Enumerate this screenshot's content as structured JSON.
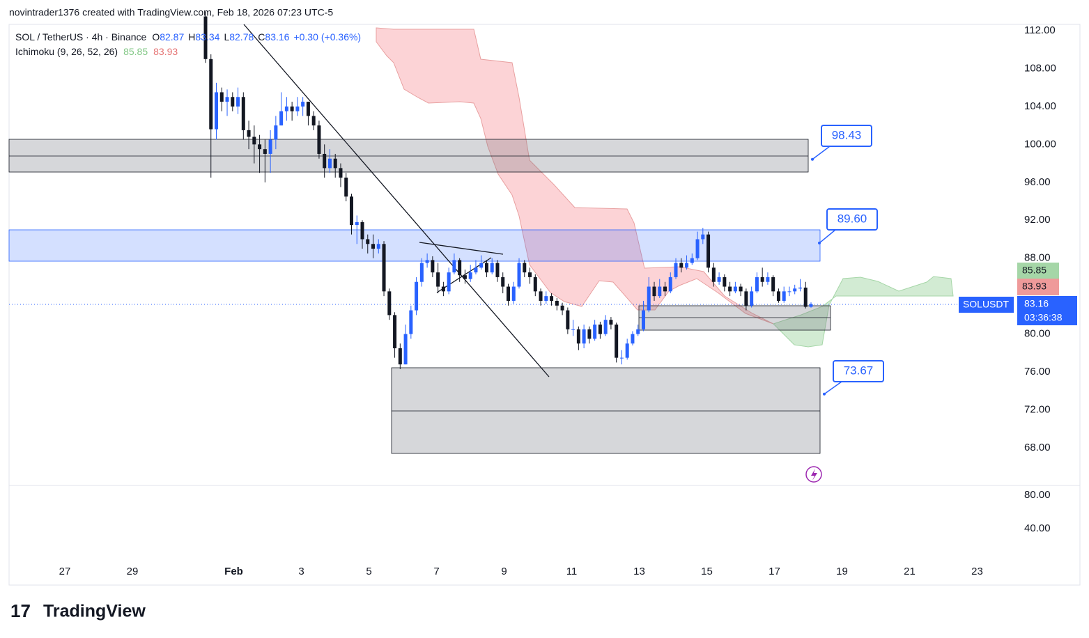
{
  "header": "novintrader1376 created with TradingView.com, Feb 18, 2026 07:23 UTC-5",
  "brand": "TradingView",
  "chart_data": {
    "type": "candlestick",
    "symbol": "SOL / TetherUS · 4h · Binance",
    "ohlc_labels": [
      "O",
      "H",
      "L",
      "C"
    ],
    "change": "+0.30",
    "change_pct": "(+0.36%)",
    "indicator": "Ichimoku (9, 26, 52, 26)",
    "indicator_values": [
      85.85,
      83.93
    ],
    "last_symbol": "SOLUSDT",
    "countdown": "03:36:38",
    "up_color": "#2962ff",
    "down_color": "#131722",
    "candles": [
      [
        113.5,
        114,
        108.6,
        109
      ],
      [
        109,
        109.5,
        96.5,
        101.6
      ],
      [
        101.6,
        106.5,
        100.5,
        105.5
      ],
      [
        105.5,
        106,
        103.5,
        104.5
      ],
      [
        104.5,
        105.8,
        103,
        105
      ],
      [
        105,
        105.5,
        103.5,
        104
      ],
      [
        104,
        106,
        103.2,
        105
      ],
      [
        105,
        105.5,
        100.5,
        101.5
      ],
      [
        101.5,
        102.5,
        99.5,
        100.8
      ],
      [
        100.8,
        102,
        98,
        100
      ],
      [
        100,
        101,
        97,
        99.5
      ],
      [
        99.5,
        100.5,
        96,
        99
      ],
      [
        99,
        101.5,
        97,
        100.5
      ],
      [
        100.5,
        103,
        99.5,
        102
      ],
      [
        102,
        105.5,
        102,
        103.5
      ],
      [
        103.5,
        105,
        102.5,
        104
      ],
      [
        104,
        104.5,
        102.5,
        103.5
      ],
      [
        103.5,
        105,
        103,
        104
      ],
      [
        104,
        105,
        103,
        104.5
      ],
      [
        104.5,
        104.5,
        102,
        103
      ],
      [
        103,
        103.5,
        101.5,
        102
      ],
      [
        102,
        102.5,
        98.5,
        99
      ],
      [
        99,
        100,
        96.5,
        97.5
      ],
      [
        97.5,
        99.5,
        97,
        98.5
      ],
      [
        98.5,
        99,
        96.5,
        97.5
      ],
      [
        97.5,
        98,
        95.5,
        96.5
      ],
      [
        96.5,
        97,
        94,
        94.5
      ],
      [
        94.5,
        94.8,
        90.5,
        91.5
      ],
      [
        91.5,
        92.5,
        89.5,
        91.8
      ],
      [
        91.8,
        92,
        89,
        90
      ],
      [
        90,
        90.5,
        88.5,
        89.5
      ],
      [
        89.5,
        90.5,
        88,
        89
      ],
      [
        89,
        90,
        88.5,
        89.5
      ],
      [
        89.5,
        89.8,
        84,
        84.5
      ],
      [
        84.5,
        84.8,
        81.5,
        82
      ],
      [
        82,
        82.3,
        77.5,
        78.5
      ],
      [
        78.5,
        79,
        76.3,
        76.8
      ],
      [
        76.8,
        81,
        76.8,
        80
      ],
      [
        80,
        83,
        79.5,
        82.5
      ],
      [
        82.5,
        86,
        82,
        85.5
      ],
      [
        85.5,
        88,
        85,
        87.5
      ],
      [
        87.5,
        88.5,
        87,
        87.8
      ],
      [
        87.8,
        88.2,
        86,
        86.5
      ],
      [
        86.5,
        87.5,
        84.3,
        85
      ],
      [
        85,
        85.5,
        84,
        84.5
      ],
      [
        84.5,
        87,
        84.2,
        86.5
      ],
      [
        86.5,
        88.5,
        86.3,
        87.8
      ],
      [
        87.8,
        88,
        85.5,
        86.2
      ],
      [
        86.2,
        86.8,
        85.3,
        85.8
      ],
      [
        85.8,
        87.3,
        85.5,
        86.5
      ],
      [
        86.5,
        87.8,
        86.3,
        87
      ],
      [
        87,
        88.3,
        86.8,
        87.5
      ],
      [
        87.5,
        87.8,
        86,
        86.5
      ],
      [
        86.5,
        88,
        86.3,
        87.5
      ],
      [
        87.5,
        87.8,
        85.5,
        86
      ],
      [
        86,
        86.5,
        84.3,
        85
      ],
      [
        85,
        85.3,
        83,
        83.5
      ],
      [
        83.5,
        85.5,
        83.2,
        85
      ],
      [
        85,
        88,
        84.8,
        87.5
      ],
      [
        87.5,
        87.8,
        86,
        86.5
      ],
      [
        86.5,
        87,
        85.3,
        86
      ],
      [
        86,
        86.3,
        84,
        84.5
      ],
      [
        84.5,
        84.8,
        83,
        83.5
      ],
      [
        83.5,
        84.5,
        83.2,
        84
      ],
      [
        84,
        84.3,
        83,
        83.5
      ],
      [
        83.5,
        83.8,
        82.5,
        83
      ],
      [
        83,
        83.3,
        82,
        82.5
      ],
      [
        82.5,
        82.8,
        80,
        80.5
      ],
      [
        80.5,
        81.5,
        79.8,
        80.5
      ],
      [
        80.5,
        80.8,
        78.3,
        79
      ],
      [
        79,
        81,
        78.5,
        80.5
      ],
      [
        80.5,
        80.8,
        79,
        79.5
      ],
      [
        79.5,
        81.5,
        79.3,
        81
      ],
      [
        81,
        81.3,
        79.5,
        80
      ],
      [
        80,
        82,
        79.8,
        81.5
      ],
      [
        81.5,
        81.8,
        80.5,
        81
      ],
      [
        81,
        81.2,
        77,
        77.5
      ],
      [
        77.5,
        78.3,
        76.8,
        77.5
      ],
      [
        77.5,
        79.5,
        77.3,
        79
      ],
      [
        79,
        80.3,
        78.8,
        80
      ],
      [
        80,
        81,
        79.8,
        80.5
      ],
      [
        80.5,
        83.5,
        80.3,
        82.5
      ],
      [
        82.5,
        86,
        82.3,
        85
      ],
      [
        85,
        85.5,
        83.5,
        84
      ],
      [
        84,
        85.8,
        83.8,
        85
      ],
      [
        85,
        85.5,
        84,
        84.5
      ],
      [
        84.5,
        86.5,
        84.3,
        86
      ],
      [
        86,
        88,
        85.8,
        87.5
      ],
      [
        87.5,
        88,
        86.5,
        87
      ],
      [
        87,
        88.3,
        86.8,
        87.5
      ],
      [
        87.5,
        88.5,
        87.3,
        88
      ],
      [
        88,
        90.8,
        87.8,
        90
      ],
      [
        90,
        91.2,
        89.5,
        90.5
      ],
      [
        90.5,
        90.8,
        86.5,
        87
      ],
      [
        87,
        87.5,
        85,
        85.5
      ],
      [
        85.5,
        86.5,
        85.2,
        86
      ],
      [
        86,
        86.3,
        84.5,
        85
      ],
      [
        85,
        85.5,
        84,
        84.5
      ],
      [
        84.5,
        85.5,
        84.3,
        85
      ],
      [
        85,
        85.3,
        84,
        84.5
      ],
      [
        84.5,
        84.8,
        82.5,
        83
      ],
      [
        83,
        85,
        82.8,
        84.5
      ],
      [
        84.5,
        86.5,
        84.3,
        86
      ],
      [
        86,
        87,
        85,
        85.5
      ],
      [
        85.5,
        86.5,
        85.2,
        86
      ],
      [
        86,
        86.2,
        84,
        84.5
      ],
      [
        84.5,
        84.8,
        83.3,
        83.5
      ],
      [
        83.5,
        85,
        83.3,
        84.5
      ],
      [
        84.5,
        85,
        84,
        84.5
      ],
      [
        84.5,
        85.2,
        84.2,
        84.8
      ],
      [
        84.8,
        85.8,
        84.5,
        84.9
      ],
      [
        84.9,
        85.5,
        82.7,
        82.87
      ],
      [
        82.87,
        83.34,
        82.78,
        83.16
      ]
    ],
    "ylim": [
      64.03,
      112.66
    ],
    "yticks": [
      {
        "value": 112,
        "label": "112.00"
      },
      {
        "value": 108,
        "label": "108.00"
      },
      {
        "value": 104,
        "label": "104.00"
      },
      {
        "value": 100,
        "label": "100.00"
      },
      {
        "value": 96,
        "label": "96.00"
      },
      {
        "value": 92,
        "label": "92.00"
      },
      {
        "value": 88,
        "label": "88.00"
      },
      {
        "value": 80,
        "label": "80.00"
      },
      {
        "value": 76,
        "label": "76.00"
      },
      {
        "value": 72,
        "label": "72.00"
      },
      {
        "value": 68,
        "label": "68.00"
      }
    ],
    "lower_ylim": [
      5.83,
      91.67
    ],
    "lower_yticks": [
      {
        "value": 80,
        "label": "80.00"
      },
      {
        "value": 40,
        "label": "40.00"
      }
    ],
    "x_labels": [
      "27",
      "29",
      "Feb",
      "3",
      "5",
      "7",
      "9",
      "11",
      "13",
      "15",
      "17",
      "19",
      "21",
      "23"
    ],
    "annotations": [
      98.43,
      {
        "value": 89.6,
        "label": "89.60"
      },
      73.67
    ]
  }
}
